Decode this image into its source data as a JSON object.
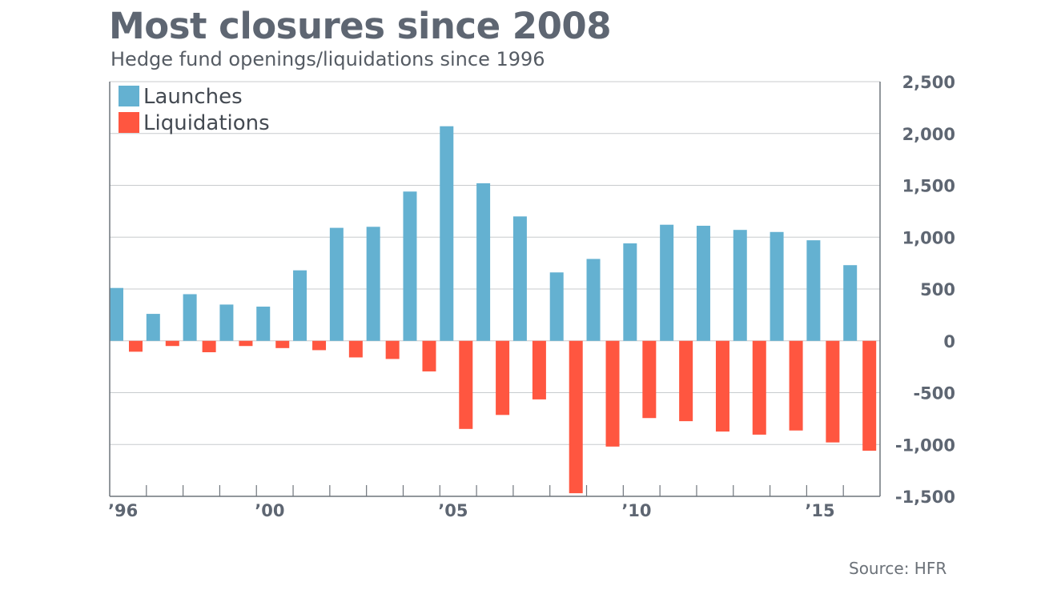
{
  "header": {
    "title": "Most closures since 2008",
    "subtitle": "Hedge fund openings/liquidations since 1996"
  },
  "source": "Source: HFR",
  "chart_data": {
    "type": "bar",
    "title": "Most closures since 2008",
    "subtitle": "Hedge fund openings/liquidations since 1996",
    "xlabel": "",
    "ylabel": "",
    "categories": [
      "1996",
      "1997",
      "1998",
      "1999",
      "2000",
      "2001",
      "2002",
      "2003",
      "2004",
      "2005",
      "2006",
      "2007",
      "2008",
      "2009",
      "2010",
      "2011",
      "2012",
      "2013",
      "2014",
      "2015",
      "2016"
    ],
    "x_tick_labels": [
      {
        "category": "1996",
        "label": "’96"
      },
      {
        "category": "2000",
        "label": "’00"
      },
      {
        "category": "2005",
        "label": "’05"
      },
      {
        "category": "2010",
        "label": "’10"
      },
      {
        "category": "2015",
        "label": "’15"
      }
    ],
    "series": [
      {
        "name": "Launches",
        "color": "#64b1d1",
        "values": [
          510,
          260,
          450,
          350,
          330,
          680,
          1090,
          1100,
          1440,
          2070,
          1520,
          1200,
          660,
          790,
          940,
          1120,
          1110,
          1070,
          1050,
          970,
          730
        ]
      },
      {
        "name": "Liquidations",
        "color": "#ff5640",
        "values": [
          -105,
          -50,
          -110,
          -50,
          -70,
          -90,
          -160,
          -175,
          -295,
          -850,
          -715,
          -565,
          -1470,
          -1020,
          -745,
          -775,
          -875,
          -905,
          -865,
          -980,
          -1060
        ]
      }
    ],
    "ylim": [
      -1500,
      2500
    ],
    "yticks": [
      2500,
      2000,
      1500,
      1000,
      500,
      0,
      -500,
      -1000,
      -1500
    ],
    "ytick_labels": [
      "2,500",
      "2,000",
      "1,500",
      "1,000",
      "500",
      "0",
      "-500",
      "-1,000",
      "-1,500"
    ],
    "y_axis_position": "right",
    "grid": true,
    "legend": "top-left",
    "colors": {
      "launches": "#64b1d1",
      "liquidations": "#ff5640",
      "grid": "#c8cbce",
      "axis": "#6f757c"
    }
  }
}
